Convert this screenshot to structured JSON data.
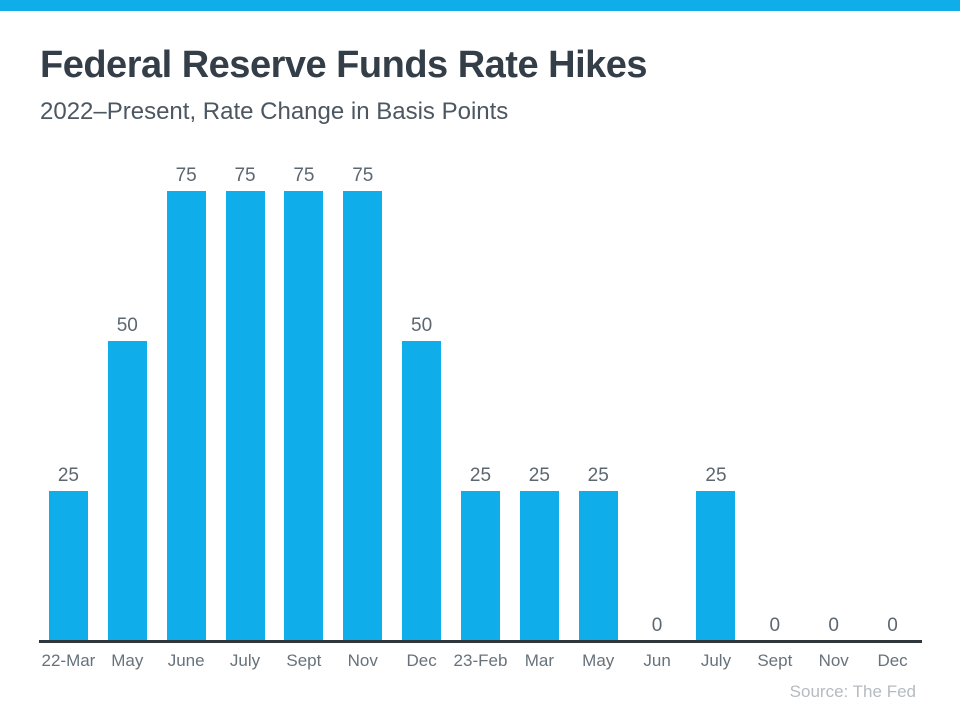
{
  "page": {
    "accent_color": "#0FAEEA",
    "axis_line_color": "#2F373D",
    "title_color": "#333E48",
    "label_color": "#5C6770"
  },
  "chart_data": {
    "type": "bar",
    "title": "Federal Reserve Funds Rate Hikes",
    "subtitle": "2022–Present, Rate Change in Basis Points",
    "categories": [
      "22-Mar",
      "May",
      "June",
      "July",
      "Sept",
      "Nov",
      "Dec",
      "23-Feb",
      "Mar",
      "May",
      "Jun",
      "July",
      "Sept",
      "Nov",
      "Dec"
    ],
    "values": [
      25,
      50,
      75,
      75,
      75,
      75,
      50,
      25,
      25,
      25,
      0,
      25,
      0,
      0,
      0
    ],
    "xlabel": "",
    "ylabel": "Rate Change in Basis Points",
    "ylim": [
      0,
      75
    ],
    "bar_color": "#0FAEEA",
    "grid": false,
    "legend": false,
    "data_labels_shown": true,
    "source": "Source: The Fed"
  }
}
